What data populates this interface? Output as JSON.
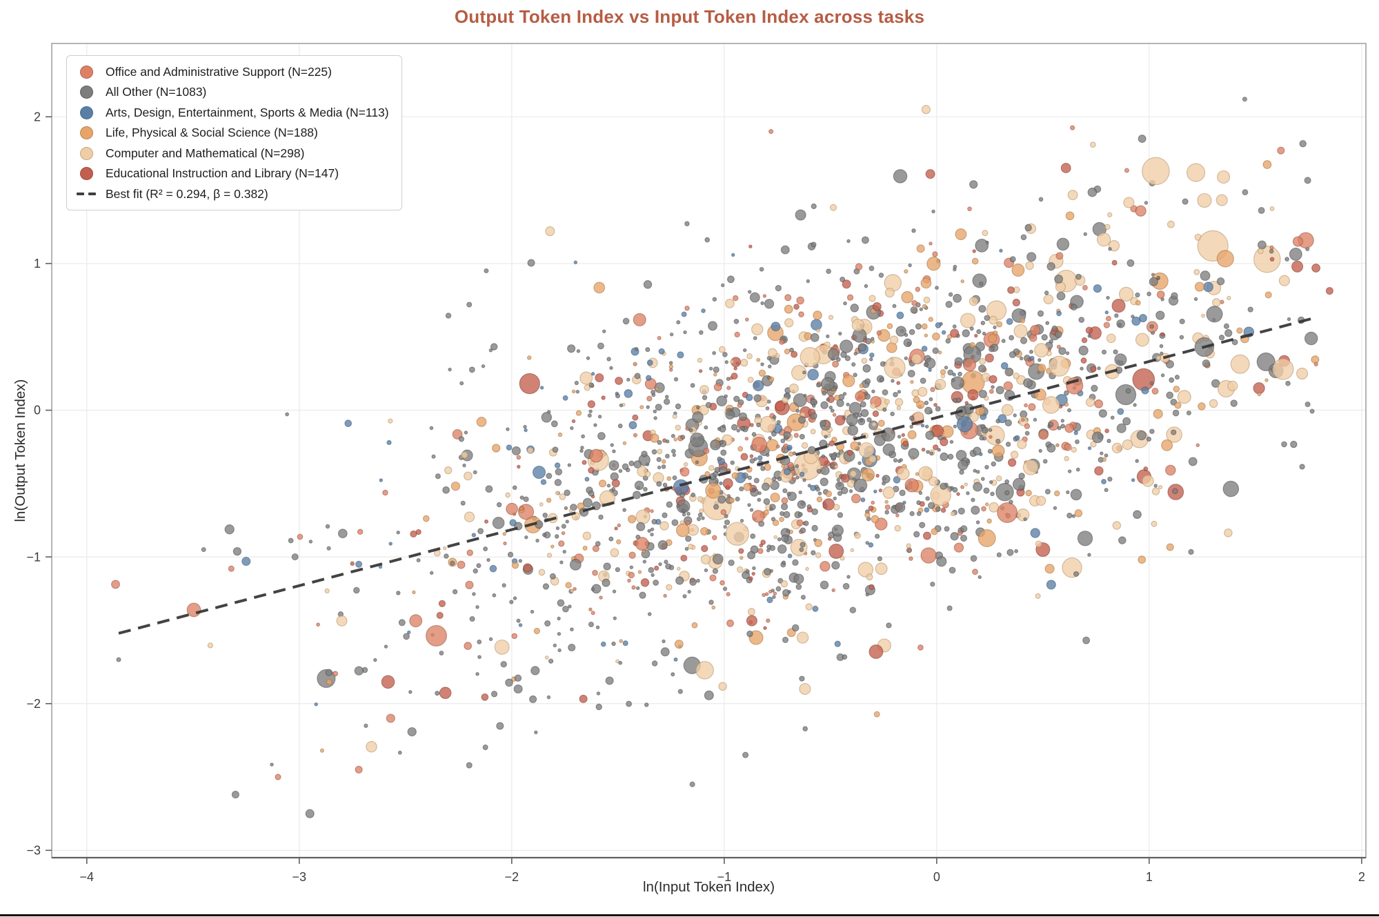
{
  "chart_data": {
    "type": "scatter",
    "title": "Output Token Index vs Input Token Index across tasks",
    "xlabel": "ln(Input Token Index)",
    "ylabel": "ln(Output Token Index)",
    "xlim": [
      -4.165,
      2.02
    ],
    "ylim": [
      -3.05,
      2.5
    ],
    "x_tick_values": [
      -4,
      -3,
      -2,
      -1,
      0,
      1,
      2
    ],
    "x_tick_labels": [
      "−4",
      "−3",
      "−2",
      "−1",
      "0",
      "1",
      "2"
    ],
    "y_tick_values": [
      -3,
      -2,
      -1,
      0,
      1,
      2
    ],
    "y_tick_labels": [
      "−3",
      "−2",
      "−1",
      "0",
      "1",
      "2"
    ],
    "grid": true,
    "legend_position": "upper left",
    "series": [
      {
        "label": "Office and Administrative Support (N=225)",
        "name": "Office and Administrative Support",
        "n": 225,
        "color": "#dd8165",
        "edge": "#8f4f3c",
        "x_shift": 0.0,
        "r_mult": 1.0
      },
      {
        "label": "All Other (N=1083)",
        "name": "All Other",
        "n": 1083,
        "color": "#7d7d7d",
        "edge": "#4a4a4a",
        "x_shift": 0.0,
        "r_mult": 0.85
      },
      {
        "label": "Arts, Design, Entertainment, Sports & Media (N=113)",
        "name": "Arts, Design, Entertainment, Sports & Media",
        "n": 113,
        "color": "#5a7fa7",
        "edge": "#3a5878",
        "x_shift": -0.05,
        "r_mult": 1.0
      },
      {
        "label": "Life, Physical & Social Science (N=188)",
        "name": "Life, Physical & Social Science",
        "n": 188,
        "color": "#e7a469",
        "edge": "#a06c38",
        "x_shift": 0.05,
        "r_mult": 1.15
      },
      {
        "label": "Computer and Mathematical (N=298)",
        "name": "Computer and Mathematical",
        "n": 298,
        "color": "#efcda7",
        "edge": "#ad8a5d",
        "x_shift": 0.3,
        "r_mult": 1.35
      },
      {
        "label": "Educational Instruction and Library (N=147)",
        "name": "Educational Instruction and Library",
        "n": 147,
        "color": "#c35f4e",
        "edge": "#833c30",
        "x_shift": 0.0,
        "r_mult": 1.05
      }
    ],
    "best_fit": {
      "label": "Best fit (R² = 0.294, β = 0.382)",
      "r2": 0.294,
      "beta": 0.382,
      "intercept": -0.05,
      "x_start": -3.85,
      "x_end": 1.78,
      "color": "#333333",
      "dash": [
        18,
        11
      ],
      "width": 4
    },
    "point_cloud": {
      "seed": 42,
      "x_mean": -0.52,
      "x_sd": 1.02,
      "x_min": -3.9,
      "x_max": 1.85,
      "resid_sd": 0.6,
      "y_min": -2.88,
      "y_max": 2.12,
      "r_log_mean": 1.25,
      "r_log_sd": 0.52,
      "r_min": 2.2,
      "r_max": 23,
      "fill_opacity": 0.78
    },
    "outliers": [
      {
        "s": 1,
        "x": 1.45,
        "y": 2.12,
        "r": 3
      },
      {
        "s": 4,
        "x": -0.05,
        "y": 2.05,
        "r": 6
      },
      {
        "s": 0,
        "x": -0.78,
        "y": 1.9,
        "r": 3
      },
      {
        "s": 0,
        "x": 1.62,
        "y": 1.77,
        "r": 5
      },
      {
        "s": 5,
        "x": -0.03,
        "y": 1.61,
        "r": 6.5
      },
      {
        "s": 4,
        "x": 1.22,
        "y": 1.62,
        "r": 13
      },
      {
        "s": 4,
        "x": 1.35,
        "y": 1.59,
        "r": 9
      },
      {
        "s": 4,
        "x": 1.3,
        "y": 1.12,
        "r": 22
      },
      {
        "s": 4,
        "x": 1.26,
        "y": 1.43,
        "r": 10
      },
      {
        "s": 4,
        "x": -1.82,
        "y": 1.22,
        "r": 6.5
      },
      {
        "s": 3,
        "x": 1.05,
        "y": 0.88,
        "r": 12
      },
      {
        "s": 1,
        "x": -2.2,
        "y": 0.72,
        "r": 3.5
      },
      {
        "s": 1,
        "x": -2.12,
        "y": 0.95,
        "r": 3
      },
      {
        "s": 1,
        "x": -1.72,
        "y": 0.42,
        "r": 5.5
      },
      {
        "s": 2,
        "x": -1.42,
        "y": 0.4,
        "r": 5.5
      },
      {
        "s": 2,
        "x": -3.25,
        "y": -1.03,
        "r": 6
      },
      {
        "s": 1,
        "x": -3.02,
        "y": -1.0,
        "r": 4.5
      },
      {
        "s": 2,
        "x": -2.72,
        "y": -1.05,
        "r": 4.5
      },
      {
        "s": 0,
        "x": -3.32,
        "y": -1.08,
        "r": 4
      },
      {
        "s": 1,
        "x": -3.45,
        "y": -0.95,
        "r": 3
      },
      {
        "s": 1,
        "x": -3.85,
        "y": -1.7,
        "r": 3
      },
      {
        "s": 0,
        "x": -2.57,
        "y": -2.1,
        "r": 6
      },
      {
        "s": 0,
        "x": -2.72,
        "y": -2.45,
        "r": 5
      },
      {
        "s": 0,
        "x": -3.1,
        "y": -2.5,
        "r": 4
      },
      {
        "s": 1,
        "x": -3.3,
        "y": -2.62,
        "r": 5
      },
      {
        "s": 1,
        "x": -2.95,
        "y": -2.75,
        "r": 6
      },
      {
        "s": 1,
        "x": -1.97,
        "y": -1.9,
        "r": 6
      },
      {
        "s": 1,
        "x": -1.9,
        "y": -1.97,
        "r": 5
      },
      {
        "s": 1,
        "x": -2.2,
        "y": -2.42,
        "r": 4
      },
      {
        "s": 5,
        "x": 0.5,
        "y": -0.95,
        "r": 10
      },
      {
        "s": 1,
        "x": 1.55,
        "y": 0.33,
        "r": 13
      },
      {
        "s": 4,
        "x": 1.63,
        "y": 0.28,
        "r": 15
      },
      {
        "s": 0,
        "x": 1.7,
        "y": 1.15,
        "r": 7
      },
      {
        "s": 4,
        "x": 1.72,
        "y": 0.25,
        "r": 8
      },
      {
        "s": 3,
        "x": -0.85,
        "y": -1.55,
        "r": 10
      },
      {
        "s": 4,
        "x": -0.62,
        "y": -1.9,
        "r": 8
      },
      {
        "s": 1,
        "x": -0.9,
        "y": -2.35,
        "r": 4
      },
      {
        "s": 1,
        "x": -1.15,
        "y": -2.55,
        "r": 3.5
      },
      {
        "s": 3,
        "x": -1.9,
        "y": -0.78,
        "r": 12
      },
      {
        "s": 4,
        "x": -1.55,
        "y": -0.6,
        "r": 11
      }
    ],
    "style": {
      "title_color": "#b75c44",
      "grid_color": "#eaeaea",
      "frame_color": "#9b9b9b",
      "axis_color": "#5f5f5f",
      "tick_label_color": "#3d3d3d",
      "label_color": "#2b2b2b",
      "legend_border": "#cdcdcd",
      "background": "#ffffff",
      "bottom_border": "#111111"
    }
  }
}
